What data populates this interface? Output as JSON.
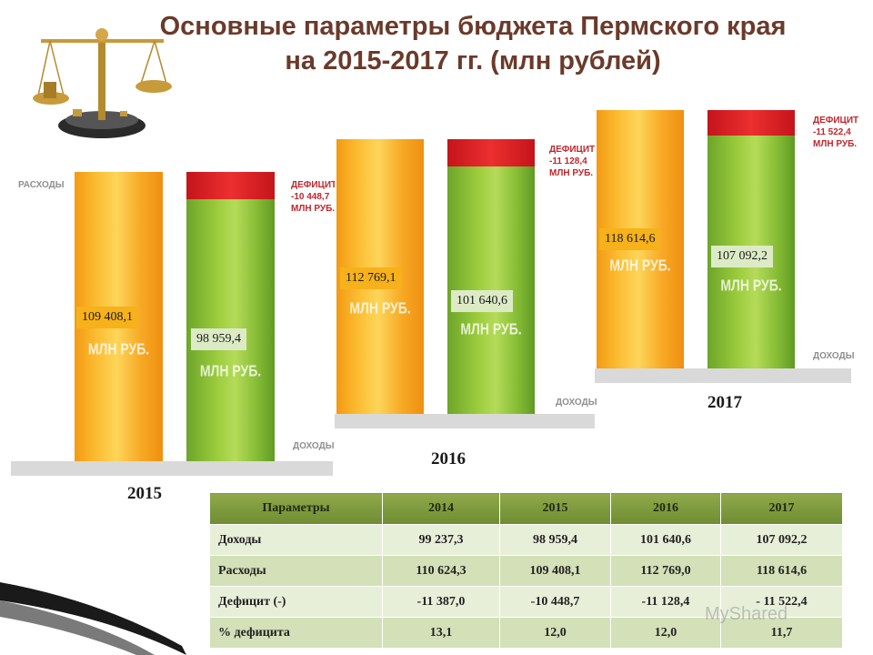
{
  "title_line1": "Основные параметры бюджета Пермского края",
  "title_line2": "на 2015-2017 гг. (млн рублей)",
  "unit_label": "МЛН РУБ.",
  "watermark": "MyShared",
  "colors": {
    "expenses": "#f7a925",
    "revenues": "#9ccc3d",
    "deficit": "#e02a2a",
    "title": "#6b3a2a"
  },
  "chart_data": [
    {
      "type": "bar",
      "year": "2015",
      "categories": [
        "Расходы",
        "Доходы"
      ],
      "values": [
        109408.1,
        98959.4
      ],
      "value_labels": [
        "109 408,1",
        "98 959,4"
      ],
      "deficit_label": "ДЕФИЦИТ -10 448,7 МЛН РУБ.",
      "deficit_lines": [
        "ДЕФИЦИТ",
        "-10 448,7",
        "МЛН РУБ."
      ],
      "expense_label": "РАСХОДЫ",
      "income_label": "ДОХОДЫ"
    },
    {
      "type": "bar",
      "year": "2016",
      "categories": [
        "Расходы",
        "Доходы"
      ],
      "values": [
        112769.1,
        101640.6
      ],
      "value_labels": [
        "112 769,1",
        "101 640,6"
      ],
      "deficit_label": "ДЕФИЦИТ -11 128,4 МЛН РУБ.",
      "deficit_lines": [
        "ДЕФИЦИТ",
        "-11 128,4",
        "МЛН РУБ."
      ],
      "income_label": "ДОХОДЫ"
    },
    {
      "type": "bar",
      "year": "2017",
      "categories": [
        "Расходы",
        "Доходы"
      ],
      "values": [
        118614.6,
        107092.2
      ],
      "value_labels": [
        "118 614,6",
        "107 092,2"
      ],
      "deficit_label": "ДЕФИЦИТ -11 522,4 МЛН РУБ.",
      "deficit_lines": [
        "ДЕФИЦИТ",
        "-11 522,4",
        "МЛН РУБ."
      ],
      "income_label": "ДОХОДЫ"
    }
  ],
  "table": {
    "headers": [
      "Параметры",
      "2014",
      "2015",
      "2016",
      "2017"
    ],
    "rows": [
      [
        "Доходы",
        "99 237,3",
        "98 959,4",
        "101 640,6",
        "107 092,2"
      ],
      [
        "Расходы",
        "110 624,3",
        "109 408,1",
        "112 769,0",
        "118 614,6"
      ],
      [
        "Дефицит (-)",
        "-11 387,0",
        "-10 448,7",
        "-11 128,4",
        "- 11 522,4"
      ],
      [
        "% дефицита",
        "13,1",
        "12,0",
        "12,0",
        "11,7"
      ]
    ]
  }
}
